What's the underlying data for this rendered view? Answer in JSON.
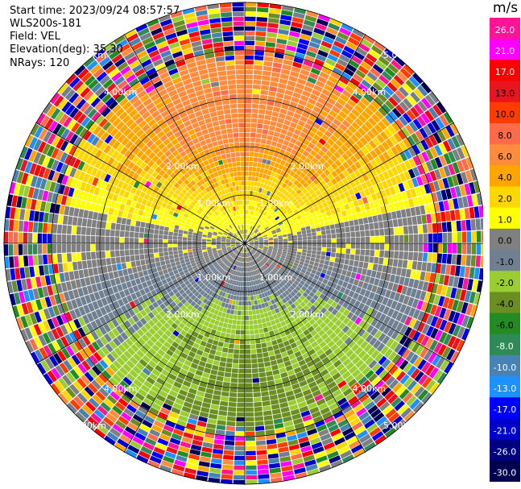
{
  "header": {
    "start_time": "Start time: 2023/09/24 08:57:57",
    "site": "WLS200s-181",
    "field": "Field: VEL",
    "elevation": "Elevation(deg): 35.30",
    "nrays": "NRays: 120"
  },
  "colorbar": {
    "unit": "m/s",
    "ticks": [
      "26.0",
      "21.0",
      "17.0",
      "13.0",
      "10.0",
      "8.0",
      "6.0",
      "4.0",
      "2.0",
      "1.0",
      "0.0",
      "-1.0",
      "-2.0",
      "-4.0",
      "-6.0",
      "-8.0",
      "-10.0",
      "-13.0",
      "-17.0",
      "-21.0",
      "-26.0",
      "-30.0"
    ],
    "colors": [
      "#ff1493",
      "#ff00ff",
      "#ff0000",
      "#e8141e",
      "#ff3c00",
      "#ff6a4a",
      "#ff8c3c",
      "#ffa500",
      "#ffd700",
      "#ffff00",
      "#808080",
      "#708090",
      "#9acd32",
      "#6b8e23",
      "#228b22",
      "#2e8b57",
      "#4682b4",
      "#1e90ff",
      "#0000ff",
      "#0000cd",
      "#000080",
      "#000050"
    ]
  },
  "chart_data": {
    "type": "heatmap",
    "projection": "polar PPI",
    "field": "VEL",
    "units": "m/s",
    "vmin": -30.0,
    "vmax": 26.0,
    "n_rays": 120,
    "range_ring_labels": [
      "1.00km",
      "2.00km",
      "4.00km",
      "5.00km"
    ],
    "max_range_km": 5.0,
    "spokes_deg": [
      0,
      30,
      60,
      90,
      120,
      150,
      180,
      210,
      240,
      270,
      300,
      330
    ],
    "velocity_pattern": {
      "north_sector_peak_ms": 10.0,
      "south_sector_peak_ms": -8.0,
      "near_zero_east_west": 0.0,
      "noise_beyond_km": 3.7
    }
  }
}
